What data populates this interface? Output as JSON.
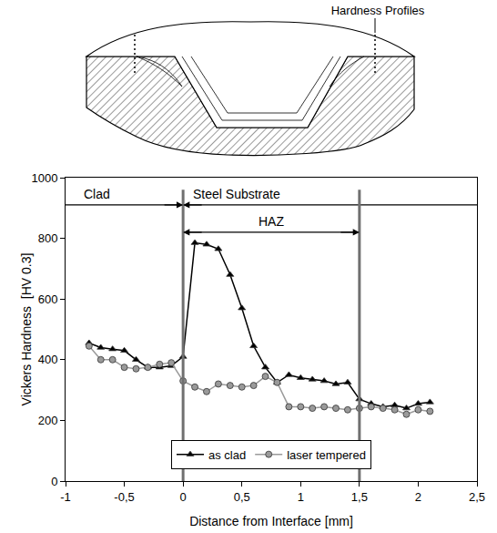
{
  "diagram": {
    "label": "Hardness Profiles"
  },
  "chart_data": {
    "type": "line",
    "x_label": "Distance from Interface [mm]",
    "y_label": "Vickers Hardness  [HV 0.3]",
    "xlim": [
      -1,
      2.5
    ],
    "xticks": [
      -1,
      {
        "value": -0.5,
        "label": "-0,5"
      },
      0,
      {
        "value": 0.5,
        "label": "0,5"
      },
      1,
      {
        "value": 1.5,
        "label": "1,5"
      },
      2,
      {
        "value": 2.5,
        "label": "2,5"
      }
    ],
    "ylim": [
      0,
      1000
    ],
    "yticks": [
      0,
      200,
      400,
      600,
      800,
      1000
    ],
    "grid": false,
    "legend": "lower center",
    "regions": [
      {
        "label": "Clad",
        "from": -1,
        "to": 0
      },
      {
        "label": "Steel Substrate",
        "from": 0,
        "to": 2.5
      },
      {
        "label": "HAZ",
        "from": 0,
        "to": 1.5
      }
    ],
    "x": [
      -0.8,
      -0.7,
      -0.6,
      -0.5,
      -0.4,
      -0.3,
      -0.2,
      -0.1,
      0,
      0.1,
      0.2,
      0.3,
      0.4,
      0.5,
      0.6,
      0.7,
      0.8,
      0.9,
      1.0,
      1.1,
      1.2,
      1.3,
      1.4,
      1.5,
      1.6,
      1.7,
      1.8,
      1.9,
      2.0,
      2.1
    ],
    "series": [
      {
        "name": "as clad",
        "color": "#000000",
        "marker": "triangle-up",
        "values": [
          455,
          440,
          435,
          430,
          400,
          375,
          375,
          380,
          410,
          785,
          780,
          765,
          680,
          570,
          445,
          375,
          325,
          350,
          340,
          335,
          330,
          320,
          325,
          270,
          255,
          245,
          250,
          240,
          255,
          260
        ]
      },
      {
        "name": "laser tempered",
        "color": "#9a9a9a",
        "marker": "circle",
        "values": [
          445,
          400,
          400,
          375,
          370,
          375,
          385,
          390,
          330,
          310,
          295,
          320,
          315,
          310,
          315,
          345,
          325,
          245,
          245,
          240,
          245,
          240,
          235,
          240,
          245,
          240,
          235,
          220,
          235,
          230
        ]
      }
    ]
  }
}
